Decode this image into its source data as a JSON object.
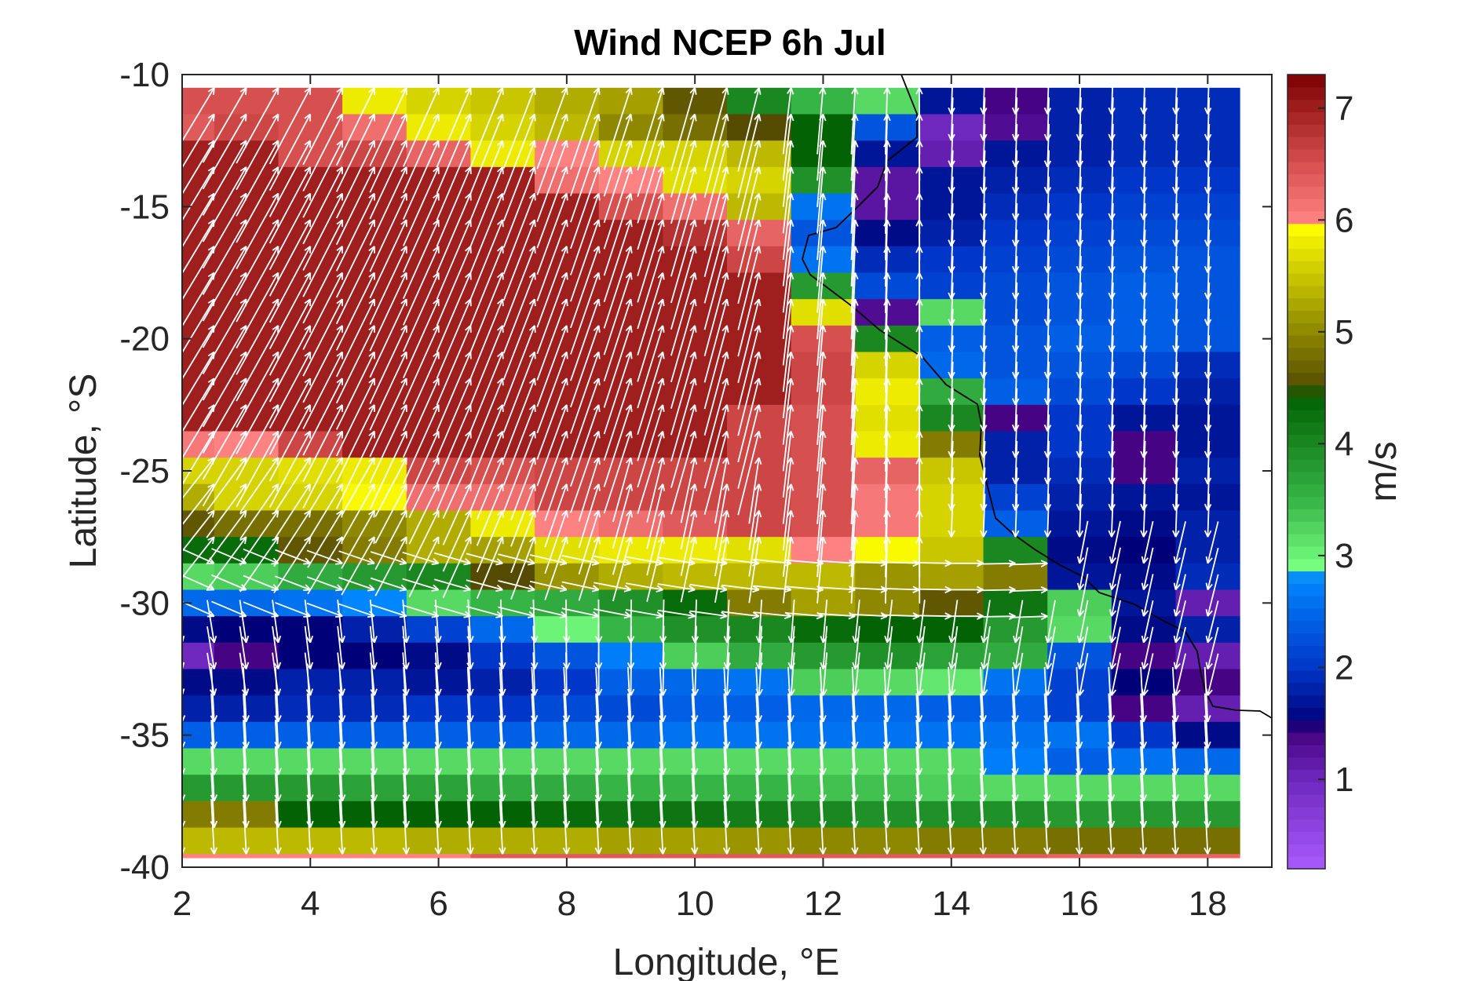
{
  "chart_data": {
    "type": "heatmap",
    "title": "Wind NCEP 6h Jul",
    "xlabel": "Longitude, °E",
    "ylabel": "Latitude, °S",
    "colorbar_label": "m/s",
    "xlim": [
      2,
      19
    ],
    "ylim": [
      -40,
      -10
    ],
    "xticks": [
      2,
      4,
      6,
      8,
      10,
      12,
      14,
      16,
      18
    ],
    "yticks": [
      -10,
      -15,
      -20,
      -25,
      -30,
      -35,
      -40
    ],
    "colorbar_ticks": [
      1,
      2,
      3,
      4,
      5,
      6,
      7
    ],
    "colorbar_range": [
      0.2,
      7.3
    ],
    "grid": false,
    "overlay": "white wind-vector arrows",
    "x_centers": [
      2,
      3,
      4,
      5,
      6,
      7,
      8,
      9,
      10,
      11,
      12,
      13,
      14,
      15,
      16,
      17,
      18
    ],
    "y_centers": [
      -11,
      -12,
      -13,
      -14,
      -15,
      -16,
      -17,
      -18,
      -19,
      -20,
      -21,
      -22,
      -23,
      -24,
      -25,
      -26,
      -27,
      -28,
      -29,
      -30,
      -31,
      -32,
      -33,
      -34,
      -35,
      -36,
      -37,
      -38,
      -39,
      -40
    ],
    "values": [
      [
        6.5,
        6.5,
        6.5,
        5.8,
        5.6,
        5.5,
        5.3,
        5.2,
        4.6,
        4.0,
        3.5,
        3.2,
        1.7,
        1.4,
        1.8,
        1.9,
        1.9
      ],
      [
        6.4,
        6.6,
        6.5,
        6.2,
        5.8,
        5.6,
        5.4,
        5.0,
        4.8,
        4.5,
        4.4,
        2.3,
        1.0,
        1.3,
        1.8,
        1.9,
        1.9
      ],
      [
        7.0,
        7.0,
        6.5,
        6.6,
        6.3,
        5.8,
        6.0,
        5.6,
        5.6,
        5.4,
        4.4,
        1.7,
        1.1,
        1.7,
        1.8,
        1.9,
        1.9
      ],
      [
        7.0,
        7.0,
        7.0,
        7.0,
        7.0,
        7.0,
        6.2,
        6.0,
        5.7,
        5.6,
        3.9,
        1.2,
        1.7,
        1.8,
        1.9,
        2.0,
        2.0
      ],
      [
        7.0,
        7.0,
        7.0,
        7.0,
        7.0,
        7.0,
        7.0,
        6.5,
        6.2,
        5.4,
        2.6,
        1.2,
        1.7,
        1.9,
        2.0,
        2.1,
        2.1
      ],
      [
        7.0,
        7.0,
        7.0,
        7.0,
        7.0,
        7.0,
        7.0,
        7.0,
        6.8,
        6.3,
        2.3,
        1.6,
        1.8,
        2.0,
        2.1,
        2.2,
        2.2
      ],
      [
        7.0,
        7.0,
        7.0,
        7.0,
        7.0,
        7.0,
        7.0,
        7.0,
        7.0,
        6.6,
        2.6,
        1.9,
        2.0,
        2.1,
        2.2,
        2.3,
        2.3
      ],
      [
        7.0,
        7.0,
        7.0,
        7.0,
        7.0,
        7.0,
        7.0,
        7.0,
        7.0,
        7.0,
        3.8,
        2.2,
        2.1,
        2.2,
        2.3,
        2.4,
        2.3
      ],
      [
        7.0,
        7.0,
        7.0,
        7.0,
        7.0,
        7.0,
        7.0,
        7.0,
        7.0,
        7.0,
        5.7,
        1.3,
        3.2,
        2.2,
        2.3,
        2.4,
        2.3
      ],
      [
        7.0,
        7.0,
        7.0,
        7.0,
        7.0,
        7.0,
        7.0,
        7.0,
        7.0,
        7.0,
        6.5,
        4.0,
        2.4,
        2.3,
        2.4,
        2.4,
        2.3
      ],
      [
        7.0,
        7.0,
        7.0,
        7.0,
        7.0,
        7.0,
        7.0,
        7.0,
        7.0,
        7.0,
        6.6,
        5.6,
        2.5,
        2.3,
        2.3,
        2.2,
        1.9
      ],
      [
        7.0,
        7.0,
        7.0,
        7.0,
        7.0,
        7.0,
        7.0,
        7.0,
        7.0,
        7.0,
        6.6,
        5.8,
        3.6,
        2.4,
        2.2,
        2.0,
        1.8
      ],
      [
        7.0,
        7.0,
        7.0,
        7.0,
        7.0,
        7.0,
        7.0,
        7.0,
        7.0,
        6.6,
        6.5,
        5.7,
        4.0,
        1.4,
        2.0,
        1.7,
        1.7
      ],
      [
        6.1,
        6.0,
        6.6,
        7.0,
        7.0,
        7.0,
        7.0,
        7.0,
        7.0,
        6.6,
        6.5,
        5.8,
        4.9,
        1.8,
        2.0,
        1.4,
        1.7
      ],
      [
        5.6,
        5.6,
        5.7,
        5.8,
        6.6,
        6.5,
        6.6,
        6.6,
        6.6,
        6.6,
        6.5,
        6.3,
        5.5,
        1.8,
        1.9,
        1.4,
        1.8
      ],
      [
        5.3,
        5.6,
        5.6,
        5.9,
        6.2,
        6.2,
        6.6,
        6.6,
        6.6,
        6.6,
        6.5,
        6.1,
        5.6,
        2.1,
        1.8,
        1.7,
        1.7
      ],
      [
        4.6,
        4.8,
        4.8,
        5.0,
        5.3,
        5.8,
        6.0,
        6.2,
        6.4,
        6.6,
        6.5,
        6.1,
        5.6,
        2.4,
        1.7,
        1.6,
        1.8
      ],
      [
        4.3,
        4.3,
        4.6,
        4.9,
        5.3,
        5.2,
        5.7,
        5.8,
        5.8,
        5.7,
        6.0,
        5.9,
        5.5,
        4.0,
        1.6,
        1.5,
        1.8
      ],
      [
        3.2,
        3.3,
        3.6,
        3.8,
        4.0,
        4.5,
        5.1,
        5.3,
        5.4,
        5.4,
        5.4,
        5.1,
        5.2,
        4.9,
        1.7,
        1.6,
        1.9
      ],
      [
        2.5,
        2.5,
        2.6,
        2.8,
        3.2,
        3.5,
        3.6,
        3.9,
        4.3,
        4.9,
        5.2,
        5.0,
        4.6,
        4.2,
        3.3,
        1.7,
        1.1
      ],
      [
        1.6,
        1.5,
        1.5,
        1.8,
        2.1,
        2.5,
        3.0,
        3.5,
        3.9,
        4.0,
        4.3,
        4.4,
        4.4,
        3.8,
        3.2,
        1.6,
        1.8
      ],
      [
        1.0,
        1.4,
        1.5,
        1.5,
        1.6,
        2.0,
        2.3,
        2.7,
        3.3,
        3.6,
        3.8,
        3.9,
        3.7,
        3.6,
        2.3,
        1.4,
        1.1
      ],
      [
        1.6,
        1.6,
        1.8,
        1.8,
        1.7,
        1.8,
        2.0,
        2.4,
        2.5,
        2.6,
        3.3,
        3.2,
        3.1,
        2.6,
        2.1,
        1.5,
        1.4
      ],
      [
        1.8,
        1.8,
        1.9,
        1.9,
        2.0,
        2.0,
        2.2,
        2.2,
        2.4,
        2.4,
        2.5,
        2.5,
        2.4,
        2.4,
        2.1,
        1.4,
        1.1
      ],
      [
        2.4,
        2.4,
        2.4,
        2.4,
        2.4,
        2.4,
        2.5,
        2.5,
        2.6,
        2.6,
        2.6,
        2.6,
        2.6,
        2.6,
        2.6,
        2.0,
        1.6
      ],
      [
        3.2,
        3.2,
        3.2,
        3.2,
        3.2,
        3.2,
        3.2,
        3.2,
        3.2,
        3.2,
        3.2,
        3.2,
        3.2,
        2.7,
        2.4,
        2.6,
        2.5
      ],
      [
        3.8,
        3.8,
        3.8,
        3.7,
        3.7,
        3.6,
        3.6,
        3.5,
        3.5,
        3.5,
        3.4,
        3.4,
        3.3,
        3.2,
        3.2,
        3.2,
        3.2
      ],
      [
        4.9,
        4.9,
        4.4,
        4.4,
        4.4,
        4.4,
        4.3,
        4.2,
        4.2,
        4.1,
        4.0,
        3.9,
        3.9,
        3.9,
        3.8,
        3.8,
        3.8
      ],
      [
        5.4,
        5.4,
        5.4,
        5.4,
        5.3,
        5.3,
        5.3,
        5.2,
        5.2,
        5.1,
        5.0,
        5.0,
        4.9,
        4.9,
        4.8,
        4.8,
        4.8
      ],
      [
        6.0,
        6.0,
        6.0,
        6.0,
        6.0,
        6.4,
        6.4,
        6.4,
        6.4,
        6.4,
        6.4,
        6.4,
        6.4,
        6.4,
        6.3,
        6.3,
        6.3
      ]
    ]
  }
}
